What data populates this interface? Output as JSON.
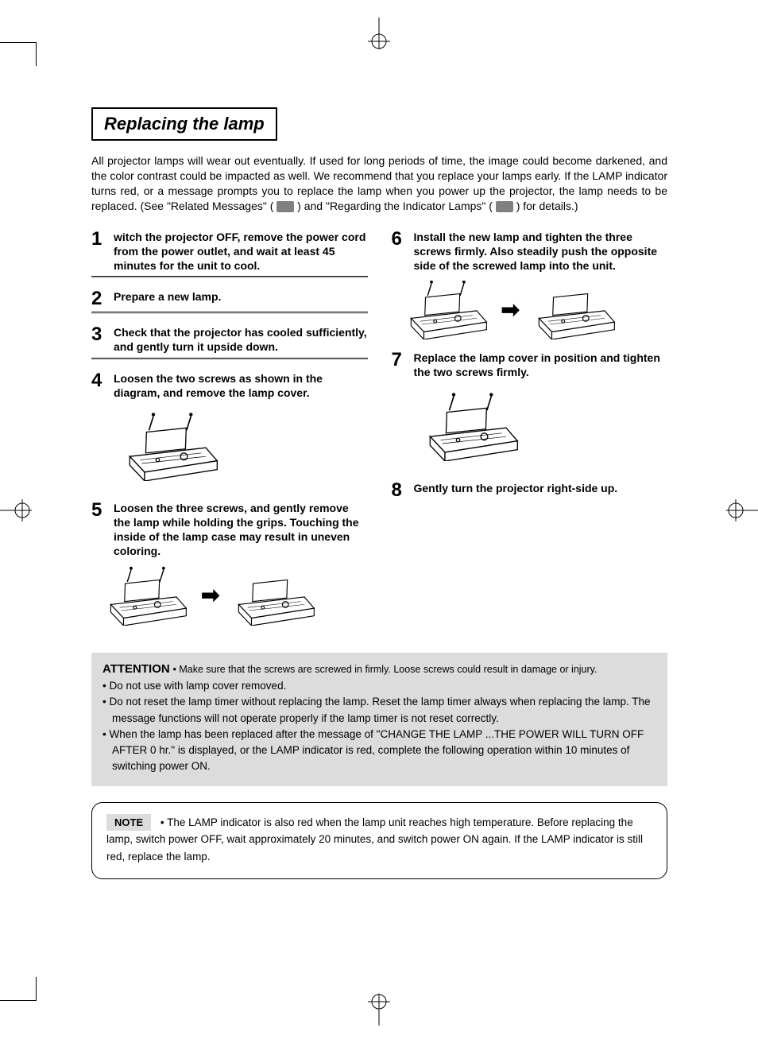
{
  "section_title": "Replacing the lamp",
  "intro_part1": "All projector lamps will wear out eventually. If used for long periods of time, the image could become darkened, and the color contrast could be impacted as well. We recommend that you replace your lamps early. If the LAMP indicator turns red, or a message prompts you to replace the lamp when you power up the projector, the lamp needs to be replaced. (See \"Related Messages\" (",
  "intro_part2": ") and \"Regarding the Indicator Lamps\" (",
  "intro_part3": ") for details.)",
  "steps_left": [
    {
      "num": "1",
      "text": "witch the projector OFF, remove the power cord from the power outlet, and wait at least 45 minutes for the unit to cool.",
      "has_rule": true,
      "image": null
    },
    {
      "num": "2",
      "text": "Prepare a new lamp.",
      "has_rule": true,
      "image": null
    },
    {
      "num": "3",
      "text": "Check that the projector has cooled sufficiently, and gently turn it upside down.",
      "has_rule": true,
      "image": null
    },
    {
      "num": "4",
      "text": "Loosen the two screws as shown in the diagram, and remove the lamp cover.",
      "has_rule": false,
      "image": "single"
    },
    {
      "num": "5",
      "text": "Loosen the three screws, and gently remove the lamp while holding the grips. Touching the inside of the lamp case may result in uneven coloring.",
      "has_rule": false,
      "image": "double"
    }
  ],
  "steps_right": [
    {
      "num": "6",
      "text": "Install the new lamp and tighten the three screws firmly. Also steadily push the opposite side of the screwed lamp into the unit.",
      "has_rule": false,
      "image": "double"
    },
    {
      "num": "7",
      "text": "Replace the lamp cover in position and tighten the two screws firmly.",
      "has_rule": false,
      "image": "single"
    },
    {
      "num": "8",
      "text": "Gently turn the projector right-side up.",
      "has_rule": false,
      "image": null
    }
  ],
  "attention": {
    "label": "ATTENTION",
    "first_inline": "• Make sure that the screws are screwed in firmly. Loose screws could result in damage or injury.",
    "items": [
      "• Do not use with lamp cover removed.",
      "• Do not reset the lamp timer without replacing the lamp. Reset the lamp timer always when replacing the lamp. The message functions will not operate  properly if the lamp timer is not reset correctly.",
      "• When the lamp has been replaced after the message of \"CHANGE THE LAMP ...THE POWER WILL TURN OFF AFTER 0 hr.\" is displayed, or the LAMP indicator is red, complete the following operation within 10 minutes of switching power ON."
    ]
  },
  "note": {
    "label": "NOTE",
    "text": "• The LAMP indicator is also red when the lamp unit reaches high temperature. Before replacing the lamp, switch power OFF, wait approximately 20 minutes, and switch power ON again. If the LAMP indicator is still red, replace the lamp."
  },
  "colors": {
    "text": "#000000",
    "background": "#ffffff",
    "attention_bg": "#dcdcdc",
    "note_label_bg": "#dcdcdc",
    "icon_gray": "#808080"
  }
}
